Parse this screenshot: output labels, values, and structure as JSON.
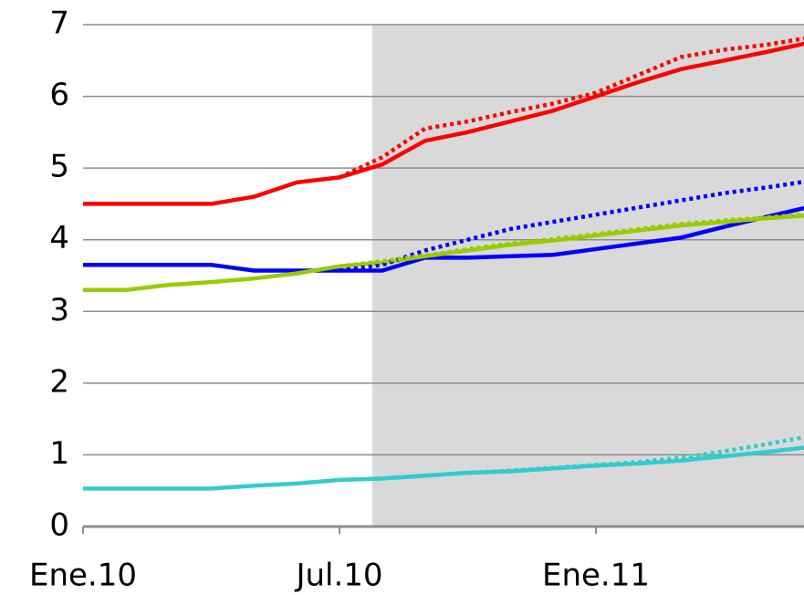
{
  "chart_data": {
    "type": "line",
    "categories": [
      "Ene.10",
      null,
      null,
      null,
      null,
      null,
      "Jul.10",
      null,
      null,
      null,
      null,
      null,
      "Ene.11",
      null,
      null,
      null,
      null,
      null
    ],
    "ylim": [
      0,
      7
    ],
    "yticks": [
      0,
      1,
      2,
      3,
      4,
      5,
      6,
      7
    ],
    "grid": true,
    "series": [
      {
        "color": "#ff0000",
        "style": "solid",
        "values": [
          4.5,
          4.5,
          4.5,
          4.5,
          4.6,
          4.8,
          4.87,
          5.05,
          5.38,
          5.5,
          5.65,
          5.8,
          6.0,
          6.2,
          6.38,
          6.5,
          6.62,
          6.75
        ]
      },
      {
        "color": "#0000ff",
        "style": "solid",
        "values": [
          3.65,
          3.65,
          3.65,
          3.65,
          3.57,
          3.57,
          3.57,
          3.57,
          3.75,
          3.75,
          3.77,
          3.79,
          3.87,
          3.95,
          4.03,
          4.18,
          4.32,
          4.46
        ]
      },
      {
        "color": "#99cc00",
        "style": "solid",
        "values": [
          3.3,
          3.3,
          3.37,
          3.41,
          3.46,
          3.53,
          3.63,
          3.68,
          3.77,
          3.85,
          3.93,
          3.99,
          4.06,
          4.13,
          4.2,
          4.25,
          4.3,
          4.34
        ]
      },
      {
        "color": "#33cccc",
        "style": "solid",
        "values": [
          0.53,
          0.53,
          0.53,
          0.53,
          0.57,
          0.6,
          0.65,
          0.67,
          0.71,
          0.75,
          0.77,
          0.81,
          0.85,
          0.88,
          0.92,
          0.98,
          1.04,
          1.11
        ]
      },
      {
        "color": "#ff0000",
        "style": "dotted",
        "values": [
          null,
          null,
          null,
          null,
          null,
          null,
          4.87,
          5.15,
          5.55,
          5.65,
          5.78,
          5.9,
          6.05,
          6.3,
          6.55,
          6.65,
          6.72,
          6.82
        ]
      },
      {
        "color": "#0000ff",
        "style": "dotted",
        "values": [
          null,
          null,
          null,
          null,
          null,
          null,
          3.57,
          3.65,
          3.85,
          4.0,
          4.15,
          4.25,
          4.35,
          4.45,
          4.55,
          4.65,
          4.73,
          4.82
        ]
      },
      {
        "color": "#99cc00",
        "style": "dotted",
        "values": [
          null,
          null,
          null,
          null,
          null,
          null,
          3.63,
          3.7,
          3.78,
          3.87,
          3.95,
          4.01,
          4.08,
          4.15,
          4.22,
          4.27,
          4.31,
          4.36
        ]
      },
      {
        "color": "#33cccc",
        "style": "dotted",
        "values": [
          null,
          null,
          null,
          null,
          null,
          null,
          0.65,
          0.67,
          0.71,
          0.75,
          0.78,
          0.82,
          0.86,
          0.9,
          0.96,
          1.05,
          1.15,
          1.26
        ]
      }
    ]
  }
}
